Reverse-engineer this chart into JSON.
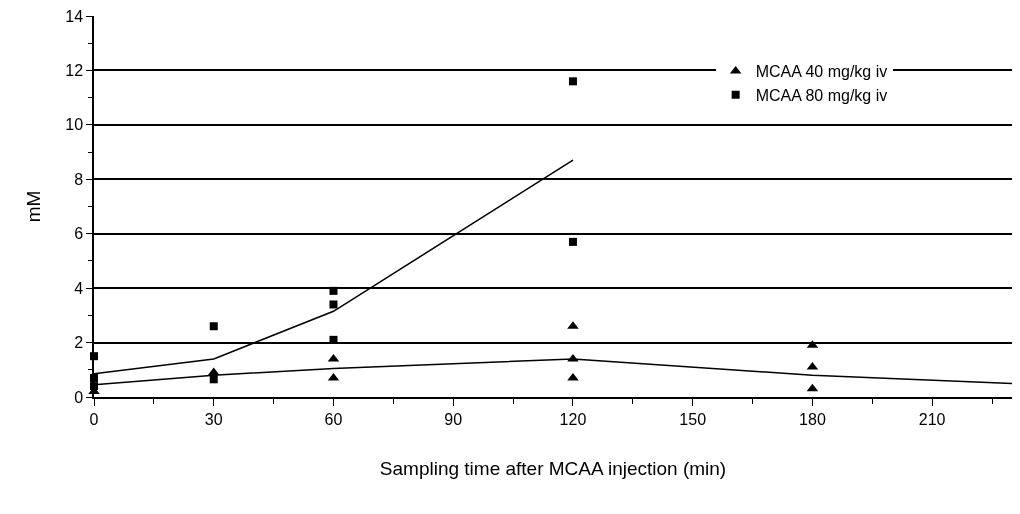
{
  "chart_data": {
    "type": "scatter",
    "xlabel": "Sampling time after MCAA injection (min)",
    "ylabel": "mM",
    "series": [
      {
        "name": "MCAA 40 mg/kg iv",
        "color": "#000000",
        "marker": "triangle",
        "x": [
          0,
          30,
          60,
          60,
          120,
          120,
          120,
          180,
          180,
          180
        ],
        "values": [
          0.2,
          0.9,
          0.7,
          1.4,
          0.7,
          1.4,
          2.6,
          0.3,
          1.1,
          1.9
        ]
      },
      {
        "name": "MCAA 80 mg/kg iv",
        "color": "#000000",
        "marker": "square",
        "x": [
          0,
          0,
          0,
          30,
          30,
          60,
          60,
          60,
          120,
          120
        ],
        "values": [
          0.4,
          0.7,
          1.5,
          0.65,
          2.6,
          2.1,
          3.4,
          3.9,
          5.7,
          11.6
        ]
      },
      {
        "type": "line",
        "color": "#000000",
        "x": [
          0,
          30,
          60,
          120,
          180,
          230
        ],
        "values": [
          0.45,
          0.8,
          1.05,
          1.4,
          0.8,
          0.5
        ]
      },
      {
        "type": "line",
        "color": "#000000",
        "x": [
          0,
          30,
          60,
          120
        ],
        "values": [
          0.85,
          1.4,
          3.15,
          8.7
        ]
      }
    ],
    "xlim": [
      0,
      230
    ],
    "ylim": [
      0,
      14
    ],
    "xticks": [
      0,
      {
        "value": 15,
        "label": null
      },
      30,
      {
        "value": 45,
        "label": null
      },
      60,
      {
        "value": 75,
        "label": null
      },
      90,
      {
        "value": 105,
        "label": null
      },
      120,
      {
        "value": 135,
        "label": null
      },
      150,
      {
        "value": 165,
        "label": null
      },
      180,
      {
        "value": 195,
        "label": null
      },
      210,
      {
        "value": 225,
        "label": null
      }
    ],
    "yticks": [
      0,
      {
        "value": 1,
        "label": null
      },
      2,
      {
        "value": 3,
        "label": null
      },
      4,
      {
        "value": 5,
        "label": null
      },
      6,
      {
        "value": 7,
        "label": null
      },
      8,
      {
        "value": 9,
        "label": null
      },
      10,
      {
        "value": 11,
        "label": null
      },
      12,
      {
        "value": 13,
        "label": null
      },
      14
    ],
    "grid": "y",
    "legend": "top right"
  }
}
